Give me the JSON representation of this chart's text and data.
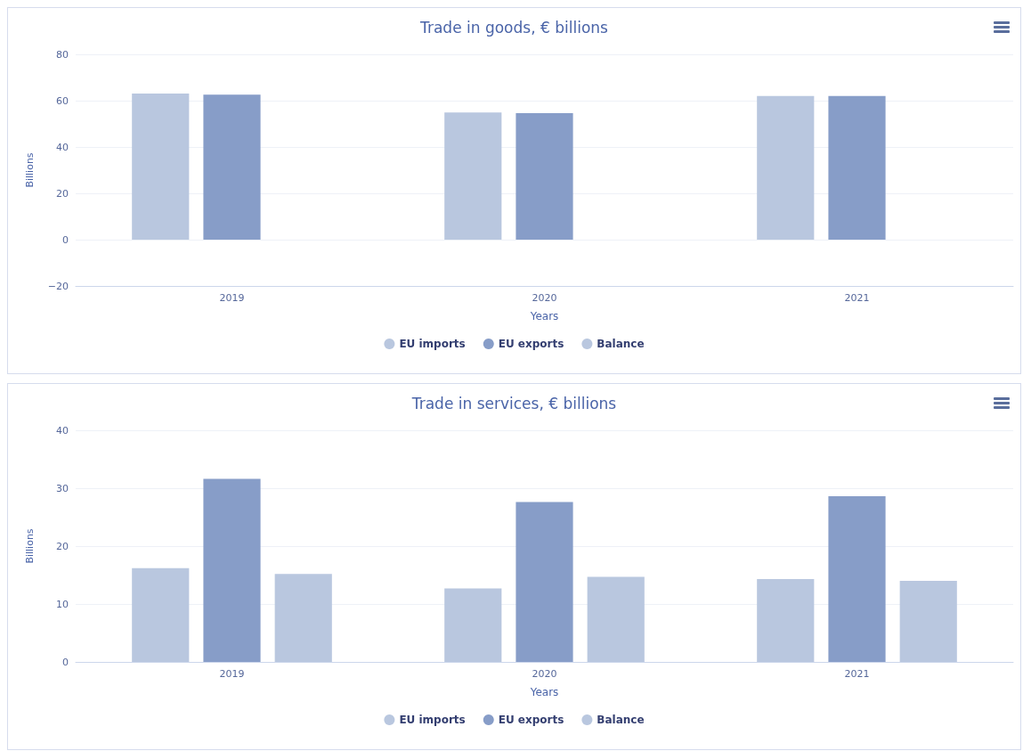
{
  "chart_data": [
    {
      "type": "bar",
      "title": "Trade in goods, € billions",
      "xlabel": "Years",
      "ylabel": "Billions",
      "categories": [
        "2019",
        "2020",
        "2021"
      ],
      "series": [
        {
          "name": "EU imports",
          "color": "#b9c7df",
          "values": [
            63.1,
            54.9,
            62.0
          ]
        },
        {
          "name": "EU exports",
          "color": "#879dc8",
          "values": [
            62.6,
            54.6,
            62.0
          ]
        },
        {
          "name": "Balance",
          "color": "#b9c7df",
          "values": [
            null,
            null,
            null
          ]
        }
      ],
      "ylim": [
        -20,
        80
      ],
      "yticks": [
        -20,
        0,
        20,
        40,
        60,
        80
      ],
      "grid": "y",
      "legend": "bottom"
    },
    {
      "type": "bar",
      "title": "Trade in services, € billions",
      "xlabel": "Years",
      "ylabel": "Billions",
      "categories": [
        "2019",
        "2020",
        "2021"
      ],
      "series": [
        {
          "name": "EU imports",
          "color": "#b9c7df",
          "values": [
            16.2,
            12.7,
            14.3
          ]
        },
        {
          "name": "EU exports",
          "color": "#879dc8",
          "values": [
            31.6,
            27.6,
            28.6
          ]
        },
        {
          "name": "Balance",
          "color": "#b9c7df",
          "values": [
            15.2,
            14.7,
            14.0
          ]
        }
      ],
      "ylim": [
        0,
        40
      ],
      "yticks": [
        0,
        10,
        20,
        30,
        40
      ],
      "grid": "y",
      "legend": "bottom"
    }
  ]
}
